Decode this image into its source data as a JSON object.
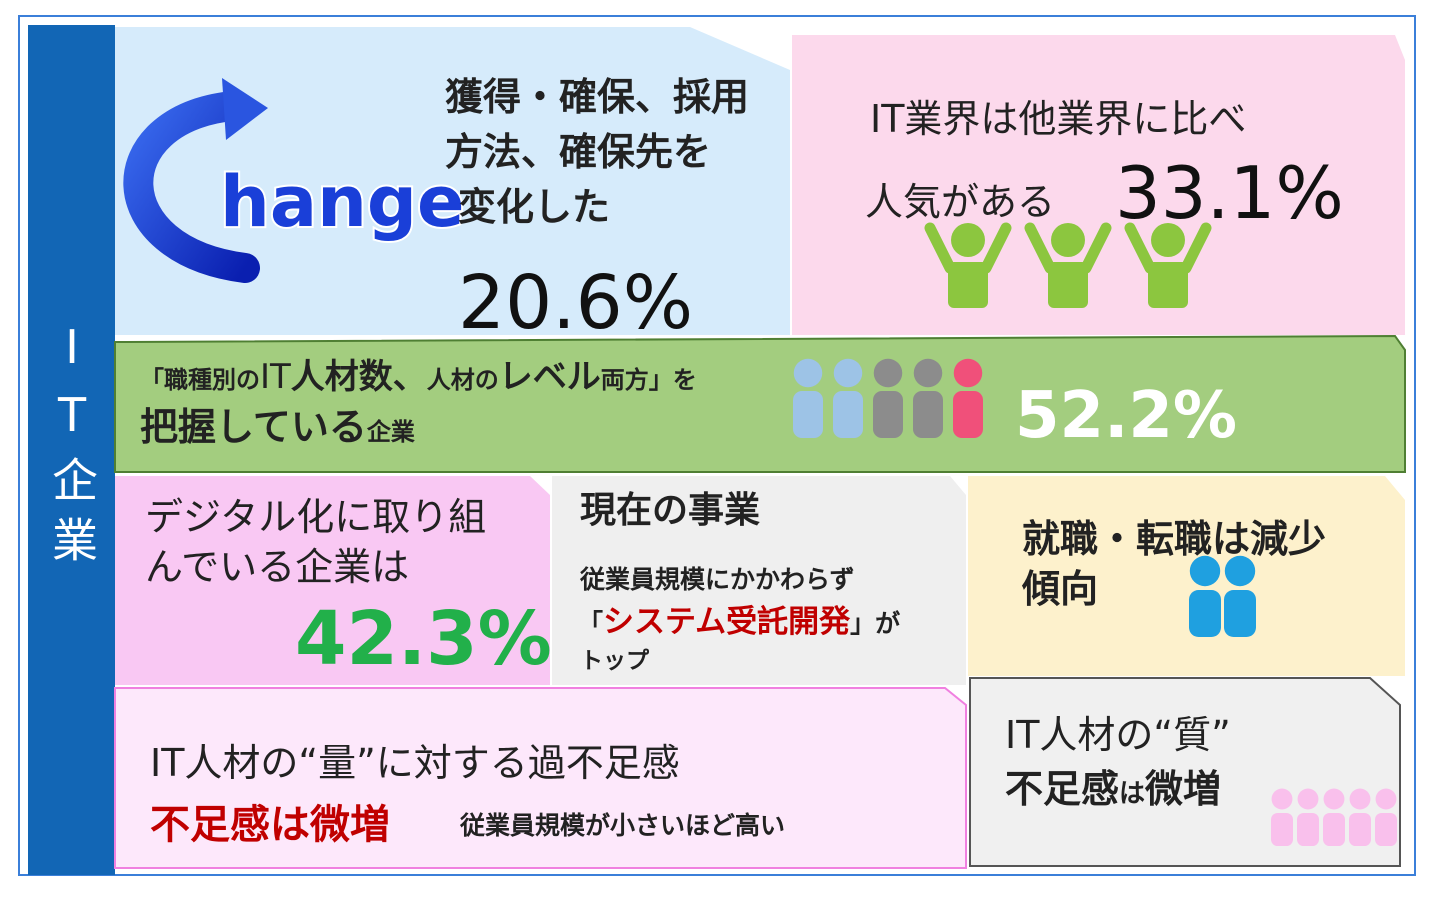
{
  "sidebar": "IT企業",
  "panels": {
    "change": {
      "word": "hange",
      "lines": [
        "獲得・確保、採用",
        "方法、確保先を",
        "変化した"
      ],
      "value": "20.6%"
    },
    "popularity": {
      "line1": "IT業界は他業界に比べ",
      "line2": "人気がある",
      "value": "33.1%"
    },
    "grasp": {
      "line1": [
        "「職種別の",
        "IT",
        "人材数、",
        "人材の",
        "レベル",
        "両方」を"
      ],
      "line2": [
        "把握している",
        "企業"
      ],
      "value": "52.2%"
    },
    "digital": {
      "lines": [
        "デジタル化に取り組",
        "んでいる企業は"
      ],
      "value": "42.3%"
    },
    "business": {
      "title": "現在の事業",
      "line1": "従業員規模にかかわらず",
      "line2": [
        "「",
        "システム受託開発",
        "」が"
      ],
      "line3": "トップ"
    },
    "employment": {
      "lines": [
        "就職・転職は減少",
        "傾向"
      ]
    },
    "quantity": {
      "title": "IT人材の“量”に対する過不足感",
      "highlight": "不足感は微増",
      "note": "従業員規模が小さいほど高い"
    },
    "quality": {
      "line1": "IT人材の“質”",
      "line2": [
        "不足感",
        "は",
        "微増"
      ]
    }
  }
}
